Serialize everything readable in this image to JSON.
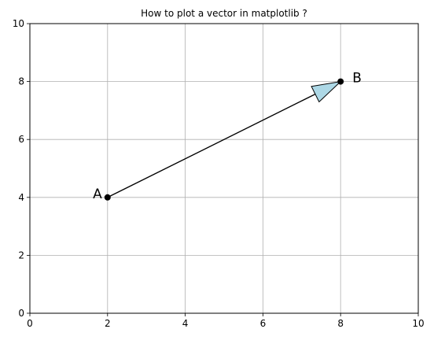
{
  "chart_data": {
    "type": "scatter",
    "title": "How to plot a vector in matplotlib ?",
    "xlabel": "",
    "ylabel": "",
    "xlim": [
      0,
      10
    ],
    "ylim": [
      0,
      10
    ],
    "xticks": [
      0,
      2,
      4,
      6,
      8,
      10
    ],
    "yticks": [
      0,
      2,
      4,
      6,
      8,
      10
    ],
    "grid": true,
    "points": [
      {
        "label": "A",
        "x": 2,
        "y": 4
      },
      {
        "label": "B",
        "x": 8,
        "y": 8
      }
    ],
    "vector": {
      "from": "A",
      "to": "B",
      "head_color": "#add8e6",
      "line_color": "#000000"
    }
  }
}
